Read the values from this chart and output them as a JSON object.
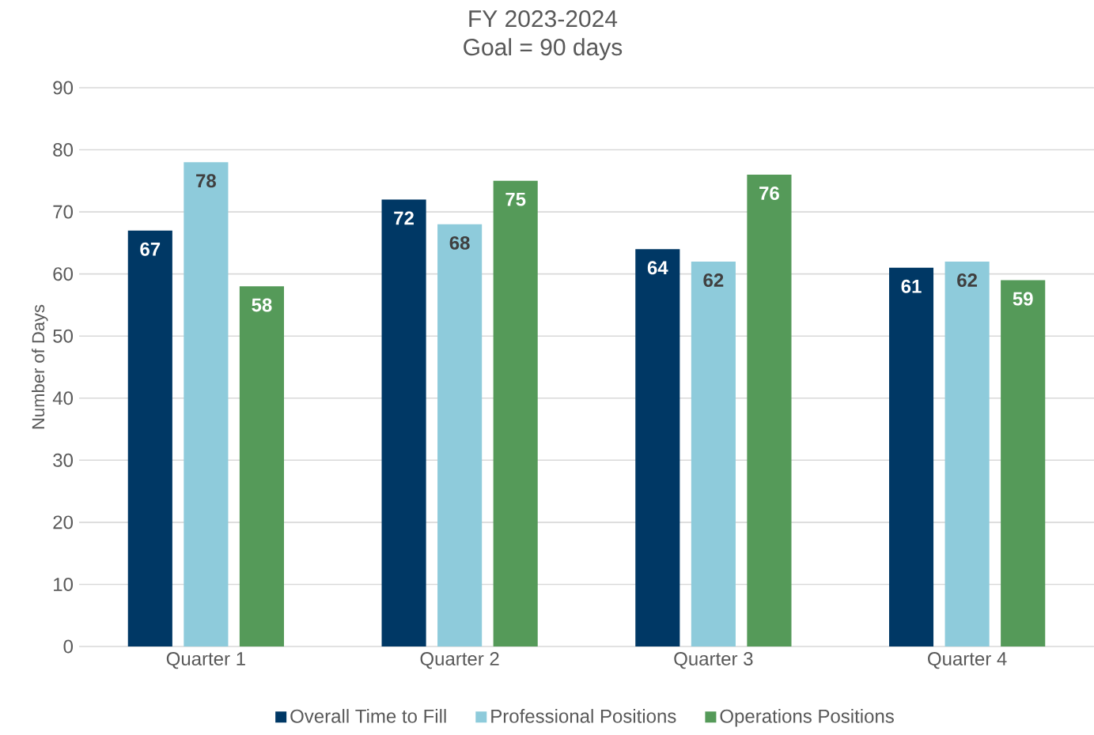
{
  "chart_data": {
    "type": "bar",
    "title": "FY 2023-2024",
    "subtitle": "Goal = 90 days",
    "ylabel": "Number of Days",
    "categories": [
      "Quarter 1",
      "Quarter 2",
      "Quarter 3",
      "Quarter 4"
    ],
    "series": [
      {
        "name": "Overall Time to Fill",
        "color": "#003865",
        "values": [
          67,
          72,
          64,
          61
        ]
      },
      {
        "name": "Professional Positions",
        "color": "#8ecbdb",
        "values": [
          78,
          68,
          62,
          62
        ]
      },
      {
        "name": "Operations Positions",
        "color": "#559a59",
        "values": [
          58,
          75,
          76,
          59
        ]
      }
    ],
    "ylim": [
      0,
      90
    ],
    "yticks": [
      0,
      10,
      20,
      30,
      40,
      50,
      60,
      70,
      80,
      90
    ],
    "grid": "y",
    "legend": "bottom",
    "data_labels": true
  }
}
